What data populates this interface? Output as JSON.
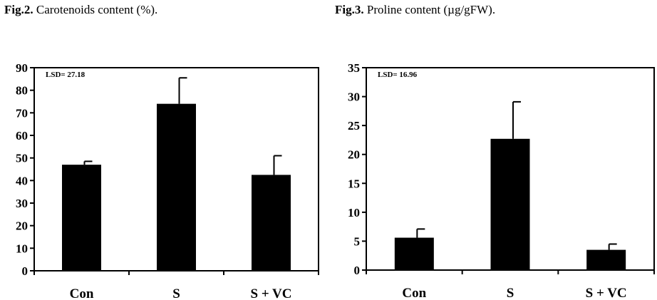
{
  "chart_data": [
    {
      "type": "bar",
      "fig_label": "Fig.2.",
      "title": "Carotenoids content (%).",
      "categories": [
        "Con",
        "S",
        "S + VC"
      ],
      "values": [
        47,
        74,
        42.5
      ],
      "error": [
        1.5,
        11.5,
        8.5
      ],
      "ylim": [
        0,
        90
      ],
      "yticks": [
        "0",
        "10",
        "20",
        "30",
        "40",
        "50",
        "60",
        "70",
        "80",
        "90"
      ],
      "annotation": "LSD= 27.18",
      "xlabel": "",
      "ylabel": "",
      "bar_color": "#000000"
    },
    {
      "type": "bar",
      "fig_label": "Fig.3.",
      "title": "Proline content (µg/gFW).",
      "categories": [
        "Con",
        "S",
        "S + VC"
      ],
      "values": [
        5.6,
        22.7,
        3.5
      ],
      "error": [
        1.5,
        6.4,
        1.0
      ],
      "ylim": [
        0,
        35
      ],
      "yticks": [
        "0",
        "5",
        "10",
        "15",
        "20",
        "25",
        "30",
        "35"
      ],
      "annotation": "LSD= 16.96",
      "xlabel": "",
      "ylabel": "",
      "bar_color": "#000000"
    }
  ]
}
